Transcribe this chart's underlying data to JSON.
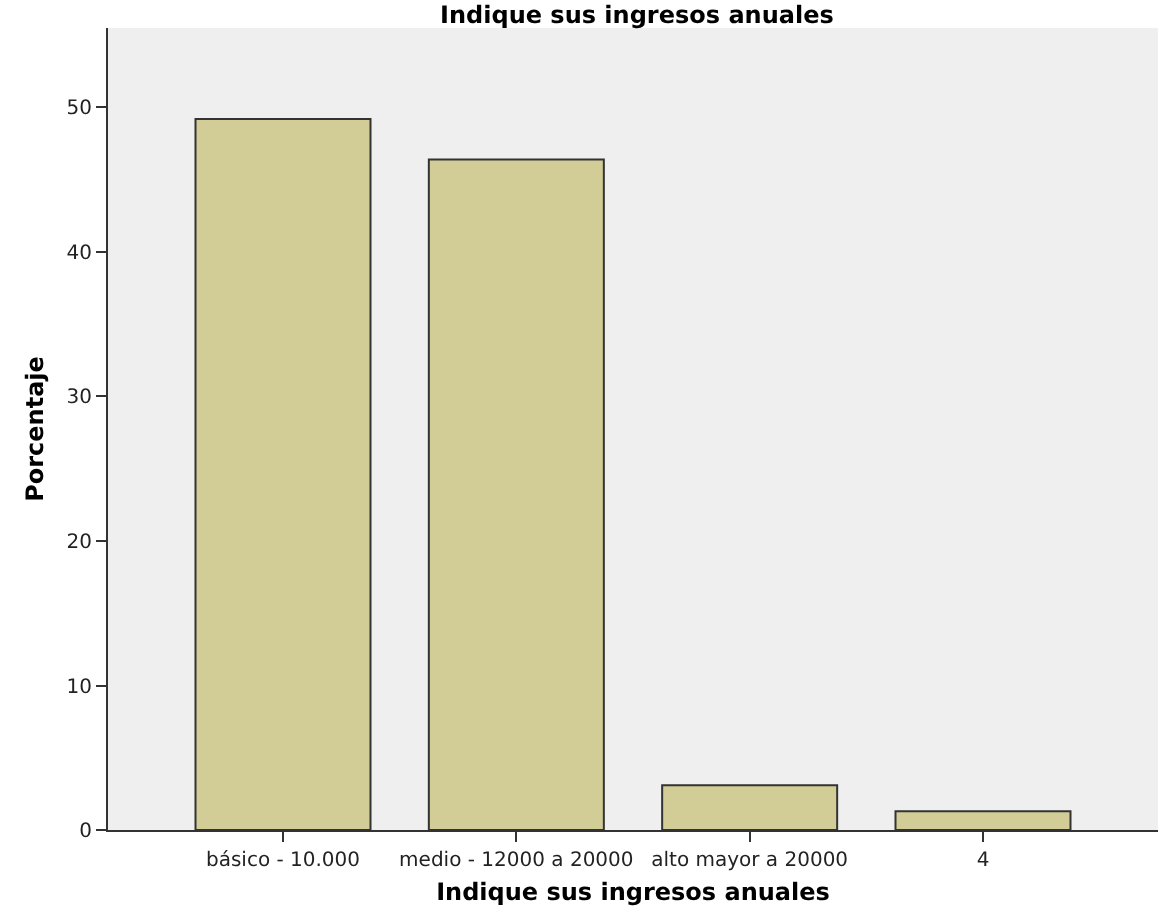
{
  "chart_data": {
    "type": "bar",
    "title": "Indique sus ingresos anuales",
    "xlabel": "Indique sus ingresos anuales",
    "ylabel": "Porcentaje",
    "categories": [
      "básico - 10.000",
      "medio - 12000 a 20000",
      "alto mayor a 20000",
      "4"
    ],
    "values": [
      49.2,
      46.4,
      3.1,
      1.3
    ],
    "color": "#d2cd96",
    "ylim": [
      0,
      55.5
    ],
    "yticks": [
      0,
      10,
      20,
      30,
      40,
      50
    ],
    "grid": false
  }
}
